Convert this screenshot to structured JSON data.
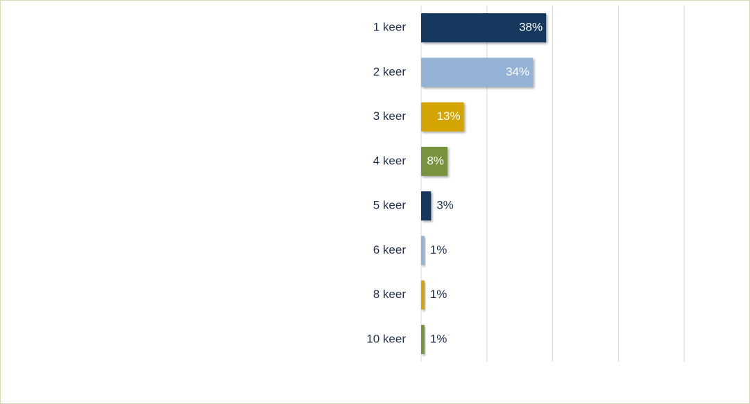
{
  "chart_data": {
    "type": "bar",
    "orientation": "horizontal",
    "categories": [
      "1 keer",
      "2 keer",
      "3 keer",
      "4 keer",
      "5 keer",
      "6 keer",
      "8 keer",
      "10 keer"
    ],
    "values": [
      38,
      34,
      13,
      8,
      3,
      1,
      1,
      1
    ],
    "value_labels": [
      "38%",
      "34%",
      "13%",
      "8%",
      "3%",
      "1%",
      "1%",
      "1%"
    ],
    "colors": [
      "#17375e",
      "#95b3d7",
      "#d4a500",
      "#77933c",
      "#17375e",
      "#95b3d7",
      "#d4a500",
      "#77933c"
    ],
    "xlim": [
      0,
      100
    ],
    "xticks": [
      0,
      20,
      40,
      60,
      80
    ],
    "grid": true
  }
}
